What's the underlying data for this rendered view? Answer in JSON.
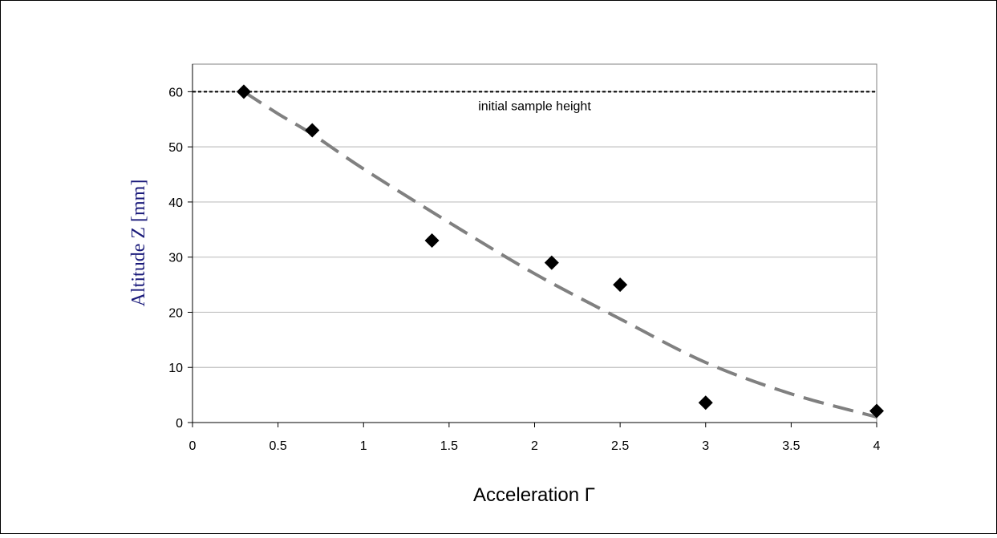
{
  "chart_data": {
    "type": "scatter",
    "title": "",
    "xlabel": "Acceleration Γ",
    "ylabel": "Altitude Z [mm]",
    "xlim": [
      0,
      4
    ],
    "ylim": [
      0,
      65
    ],
    "x_ticks": [
      0,
      0.5,
      1,
      1.5,
      2,
      2.5,
      3,
      3.5,
      4
    ],
    "x_tick_labels": [
      "0",
      "0.5",
      "1",
      "1.5",
      "2",
      "2.5",
      "3",
      "3.5",
      "4"
    ],
    "y_ticks": [
      0,
      10,
      20,
      30,
      40,
      50,
      60
    ],
    "y_tick_labels": [
      "0",
      "10",
      "20",
      "30",
      "40",
      "50",
      "60"
    ],
    "grid": "horizontal",
    "series": [
      {
        "type": "scatter",
        "marker": "diamond",
        "color": "#000000",
        "x": [
          0.3,
          0.7,
          1.4,
          2.1,
          2.5,
          3.0,
          4.0
        ],
        "y": [
          60,
          53,
          33,
          29,
          25,
          3.6,
          2.1
        ]
      },
      {
        "type": "line",
        "style": "dashed",
        "color": "#808080",
        "x": [
          0.3,
          0.5,
          0.7,
          1.0,
          1.5,
          2.0,
          2.5,
          3.0,
          3.5,
          4.0
        ],
        "y": [
          60,
          56,
          52.3,
          46,
          36.3,
          27,
          18.8,
          10.9,
          5.2,
          1
        ]
      },
      {
        "type": "reference_line",
        "style": "dotted",
        "color": "#000000",
        "y": 60
      }
    ],
    "annotations": [
      {
        "text": "initial sample height",
        "x": 2.0,
        "y": 57.5
      }
    ],
    "colors": {
      "ylabel": "#1a1a7a",
      "grid": "#c0c0c0",
      "plot_border": "#808080",
      "fit_line": "#808080",
      "marker": "#000000",
      "frame_border": "#000000"
    }
  }
}
